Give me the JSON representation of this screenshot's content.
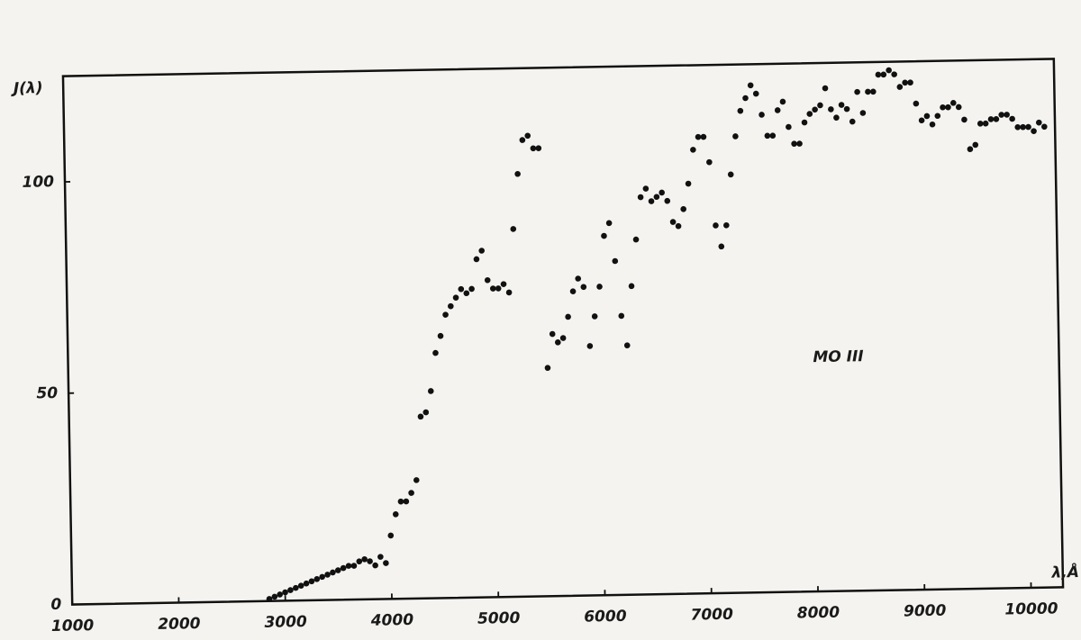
{
  "chart_data": {
    "type": "scatter",
    "y_label": "J(λ)",
    "x_label": "λ,Å",
    "annotation": "MO III",
    "color": "#111111",
    "xlim": [
      1000,
      10300
    ],
    "ylim": [
      0,
      125
    ],
    "xticks": [
      1000,
      2000,
      3000,
      4000,
      5000,
      6000,
      7000,
      8000,
      9000,
      10000
    ],
    "yticks": [
      0,
      50,
      100
    ],
    "x": [
      2850,
      2900,
      2950,
      3000,
      3050,
      3100,
      3150,
      3200,
      3250,
      3300,
      3350,
      3400,
      3450,
      3500,
      3550,
      3600,
      3650,
      3700,
      3750,
      3800,
      3850,
      3900,
      3950,
      4000,
      4050,
      4100,
      4150,
      4200,
      4250,
      4300,
      4350,
      4400,
      4450,
      4500,
      4550,
      4600,
      4650,
      4700,
      4750,
      4800,
      4850,
      4900,
      4950,
      5000,
      5050,
      5100,
      5150,
      5200,
      5250,
      5300,
      5350,
      5400,
      5450,
      5500,
      5550,
      5600,
      5650,
      5700,
      5750,
      5800,
      5850,
      5900,
      5950,
      6000,
      6050,
      6100,
      6150,
      6200,
      6250,
      6300,
      6350,
      6400,
      6450,
      6500,
      6550,
      6600,
      6650,
      6700,
      6750,
      6800,
      6850,
      6900,
      6950,
      7000,
      7050,
      7100,
      7150,
      7200,
      7250,
      7300,
      7350,
      7400,
      7450,
      7500,
      7550,
      7600,
      7650,
      7700,
      7750,
      7800,
      7850,
      7900,
      7950,
      8000,
      8050,
      8100,
      8150,
      8200,
      8250,
      8300,
      8350,
      8400,
      8450,
      8500,
      8550,
      8600,
      8650,
      8700,
      8750,
      8800,
      8850,
      8900,
      8950,
      9000,
      9050,
      9100,
      9150,
      9200,
      9250,
      9300,
      9350,
      9400,
      9450,
      9500,
      9550,
      9600,
      9650,
      9700,
      9750,
      9800,
      9850,
      9900,
      9950,
      10000,
      10050,
      10100,
      10150,
      10200
    ],
    "values": [
      0.5,
      1,
      1.5,
      2,
      2.5,
      3,
      3.5,
      4,
      4.5,
      5,
      5.5,
      6,
      6.5,
      7,
      7.5,
      8,
      8,
      9,
      9.5,
      9,
      8,
      10,
      8.5,
      15,
      20,
      23,
      23,
      25,
      28,
      43,
      44,
      49,
      58,
      62,
      67,
      69,
      71,
      73,
      72,
      73,
      80,
      82,
      75,
      73,
      73,
      74,
      72,
      87,
      100,
      108,
      109,
      106,
      106,
      54,
      62,
      60,
      61,
      66,
      72,
      75,
      73,
      59,
      66,
      73,
      85,
      88,
      79,
      66,
      59,
      73,
      84,
      94,
      96,
      93,
      94,
      95,
      93,
      88,
      87,
      91,
      97,
      105,
      108,
      108,
      102,
      87,
      82,
      87,
      99,
      108,
      114,
      117,
      120,
      118,
      113,
      108,
      108,
      114,
      116,
      110,
      106,
      106,
      111,
      113,
      114,
      115,
      119,
      114,
      112,
      115,
      114,
      111,
      118,
      113,
      118,
      118,
      122,
      122,
      123,
      122,
      119,
      120,
      120,
      115,
      111,
      112,
      110,
      112,
      114,
      114,
      115,
      114,
      111,
      104,
      105,
      110,
      110,
      111,
      111,
      112,
      112,
      111,
      109,
      109,
      109,
      108,
      110,
      109
    ]
  }
}
